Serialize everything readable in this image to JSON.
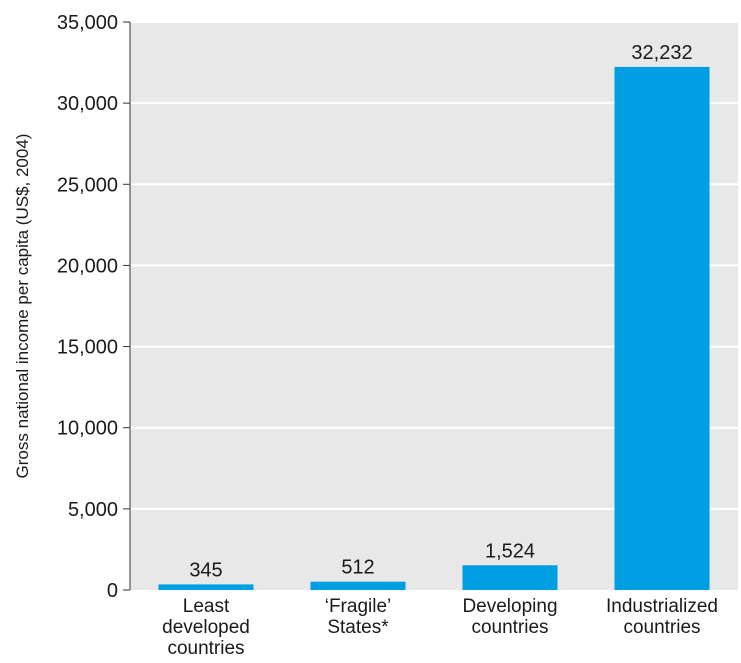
{
  "chart_data": {
    "type": "bar",
    "title": "",
    "xlabel": "",
    "ylabel": "Gross national income per capita (US$, 2004)",
    "categories": [
      [
        "Least",
        "developed",
        "countries"
      ],
      [
        "‘Fragile’",
        "States*"
      ],
      [
        "Developing",
        "countries"
      ],
      [
        "Industrialized",
        "countries"
      ]
    ],
    "values": [
      345,
      512,
      1524,
      32232
    ],
    "value_labels": [
      "345",
      "512",
      "1,524",
      "32,232"
    ],
    "ylim": [
      0,
      35000
    ],
    "y_ticks": [
      0,
      5000,
      10000,
      15000,
      20000,
      25000,
      30000,
      35000
    ],
    "y_tick_labels": [
      "0",
      "5,000",
      "10,000",
      "15,000",
      "20,000",
      "25,000",
      "30,000",
      "35,000"
    ],
    "grid": true,
    "colors": {
      "bar": "#009fe3",
      "plot_background": "#e8e8e8",
      "grid": "#ffffff",
      "axis": "#333333"
    }
  }
}
